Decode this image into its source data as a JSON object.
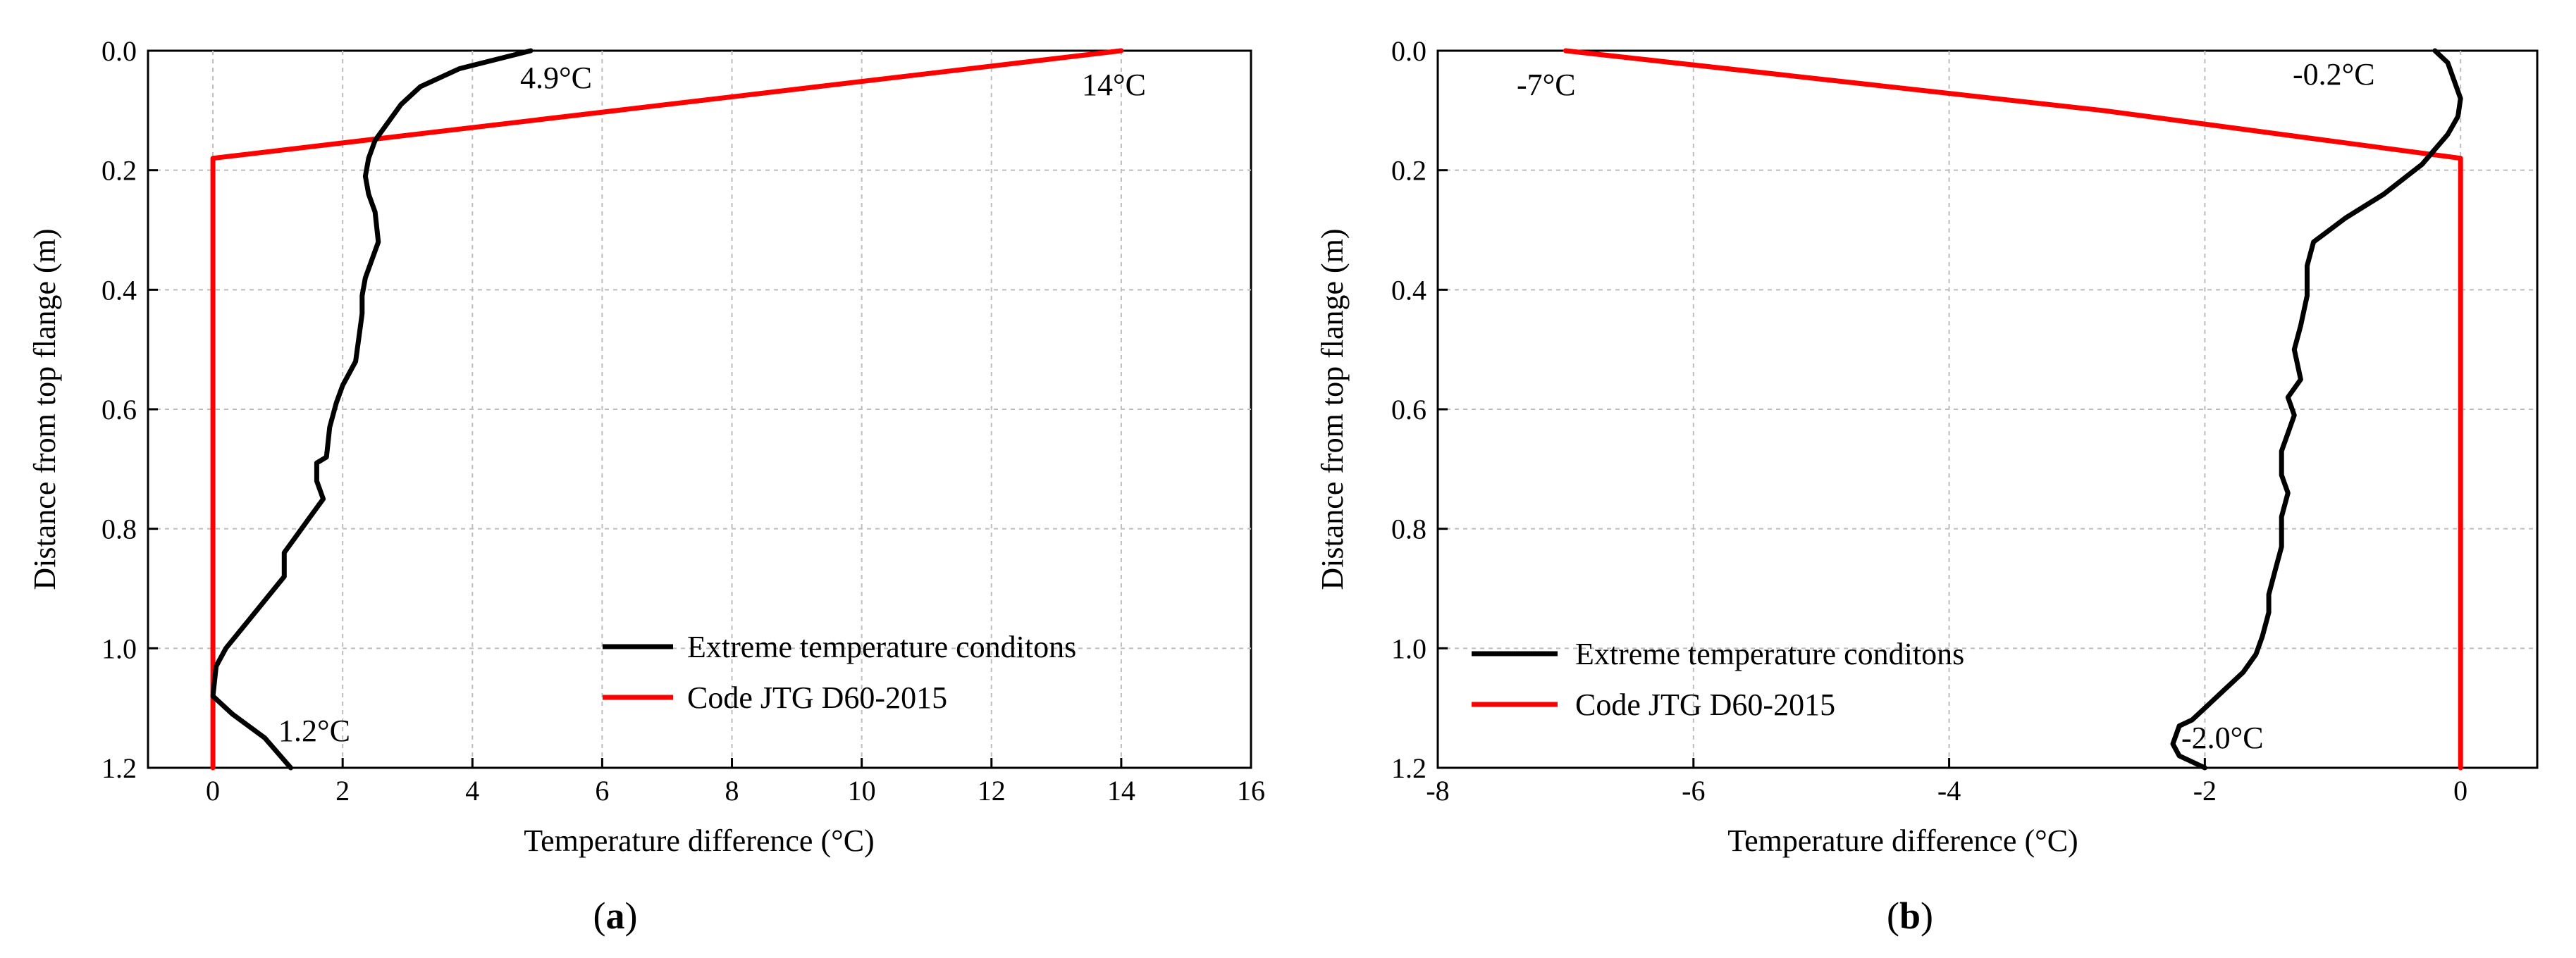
{
  "chart_data": [
    {
      "type": "line",
      "panel": "a",
      "panel_label_open": "(",
      "panel_label_letter": "a",
      "panel_label_close": ")",
      "xlabel": "Temperature difference (°C)",
      "ylabel": "Distance from top flange (m)",
      "xlim": [
        -1,
        16
      ],
      "ylim": [
        1.2,
        0
      ],
      "xticks": [
        0,
        2,
        4,
        6,
        8,
        10,
        12,
        14,
        16
      ],
      "yticks": [
        0.0,
        0.2,
        0.4,
        0.6,
        0.8,
        1.0,
        1.2
      ],
      "xtick_labels": [
        "0",
        "2",
        "4",
        "6",
        "8",
        "10",
        "12",
        "14",
        "16"
      ],
      "ytick_labels": [
        "0.0",
        "0.2",
        "0.4",
        "0.6",
        "0.8",
        "1.0",
        "1.2"
      ],
      "grid": true,
      "legend_position": "bottom-right",
      "series": [
        {
          "name": "Extreme temperature conditons",
          "color": "#000000",
          "x": [
            4.9,
            3.8,
            3.2,
            2.9,
            2.7,
            2.5,
            2.4,
            2.35,
            2.4,
            2.5,
            2.55,
            2.45,
            2.35,
            2.3,
            2.3,
            2.2,
            2.0,
            1.9,
            1.8,
            1.75,
            1.6,
            1.6,
            1.7,
            1.5,
            1.3,
            1.1,
            1.1,
            0.8,
            0.5,
            0.2,
            0.05,
            0.0,
            0.3,
            0.8,
            1.2
          ],
          "y": [
            0.0,
            0.03,
            0.06,
            0.09,
            0.12,
            0.15,
            0.18,
            0.21,
            0.24,
            0.27,
            0.32,
            0.35,
            0.38,
            0.41,
            0.44,
            0.52,
            0.56,
            0.59,
            0.63,
            0.68,
            0.69,
            0.72,
            0.75,
            0.78,
            0.81,
            0.84,
            0.88,
            0.92,
            0.96,
            1.0,
            1.03,
            1.08,
            1.11,
            1.15,
            1.2
          ]
        },
        {
          "name": "Code JTG D60-2015",
          "color": "#ff0000",
          "x": [
            14.0,
            0.0,
            0.0
          ],
          "y": [
            0.0,
            0.18,
            1.2
          ]
        }
      ],
      "annotations": [
        "4.9°C",
        "14°C",
        "1.2°C"
      ]
    },
    {
      "type": "line",
      "panel": "b",
      "panel_label_open": "(",
      "panel_label_letter": "b",
      "panel_label_close": ")",
      "xlabel": "Temperature difference (°C)",
      "ylabel": "Distance from top flange (m)",
      "xlim": [
        -8,
        0.6
      ],
      "ylim": [
        1.2,
        0
      ],
      "xticks": [
        -8,
        -6,
        -4,
        -2,
        0
      ],
      "yticks": [
        0.0,
        0.2,
        0.4,
        0.6,
        0.8,
        1.0,
        1.2
      ],
      "xtick_labels": [
        "-8",
        "-6",
        "-4",
        "-2",
        "0"
      ],
      "ytick_labels": [
        "0.0",
        "0.2",
        "0.4",
        "0.6",
        "0.8",
        "1.0",
        "1.2"
      ],
      "grid": true,
      "legend_position": "bottom-left",
      "series": [
        {
          "name": "Extreme temperature conditons",
          "color": "#000000",
          "x": [
            -0.2,
            -0.1,
            -0.05,
            0.0,
            -0.02,
            -0.1,
            -0.3,
            -0.6,
            -0.9,
            -1.15,
            -1.2,
            -1.2,
            -1.25,
            -1.3,
            -1.25,
            -1.35,
            -1.3,
            -1.35,
            -1.4,
            -1.4,
            -1.35,
            -1.4,
            -1.4,
            -1.45,
            -1.5,
            -1.5,
            -1.55,
            -1.6,
            -1.7,
            -1.85,
            -2.0,
            -2.1,
            -2.2,
            -2.25,
            -2.2,
            -2.0
          ],
          "y": [
            0.0,
            0.02,
            0.05,
            0.08,
            0.11,
            0.14,
            0.19,
            0.24,
            0.28,
            0.32,
            0.36,
            0.41,
            0.46,
            0.5,
            0.55,
            0.58,
            0.61,
            0.64,
            0.67,
            0.71,
            0.74,
            0.78,
            0.83,
            0.87,
            0.91,
            0.94,
            0.98,
            1.01,
            1.04,
            1.07,
            1.1,
            1.12,
            1.13,
            1.16,
            1.18,
            1.2
          ]
        },
        {
          "name": "Code JTG D60-2015",
          "color": "#ff0000",
          "x": [
            -7.0,
            -2.8,
            0.0,
            0.0
          ],
          "y": [
            0.0,
            0.1,
            0.18,
            1.2
          ]
        }
      ],
      "annotations": [
        "-7°C",
        "-0.2°C",
        "-2.0°C"
      ]
    }
  ]
}
